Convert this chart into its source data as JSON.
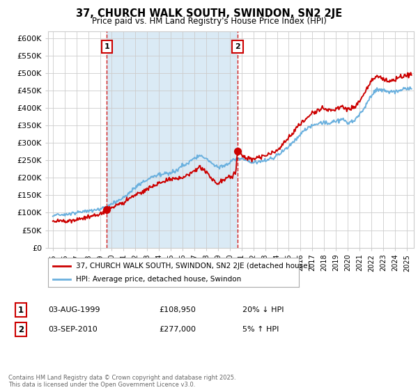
{
  "title": "37, CHURCH WALK SOUTH, SWINDON, SN2 2JE",
  "subtitle": "Price paid vs. HM Land Registry's House Price Index (HPI)",
  "legend_line1": "37, CHURCH WALK SOUTH, SWINDON, SN2 2JE (detached house)",
  "legend_line2": "HPI: Average price, detached house, Swindon",
  "sale1_label": "1",
  "sale1_date": "03-AUG-1999",
  "sale1_price": 108950,
  "sale1_note": "20% ↓ HPI",
  "sale2_label": "2",
  "sale2_date": "03-SEP-2010",
  "sale2_price": 277000,
  "sale2_note": "5% ↑ HPI",
  "hpi_color": "#6ab0de",
  "sale_color": "#cc0000",
  "vline_color": "#cc0000",
  "shade_color": "#daeaf5",
  "background_color": "#ffffff",
  "grid_color": "#cccccc",
  "ylim": [
    0,
    620000
  ],
  "yticks": [
    0,
    50000,
    100000,
    150000,
    200000,
    250000,
    300000,
    350000,
    400000,
    450000,
    500000,
    550000,
    600000
  ],
  "copyright_text": "Contains HM Land Registry data © Crown copyright and database right 2025.\nThis data is licensed under the Open Government Licence v3.0.",
  "sale1_year": 1999.583,
  "sale2_year": 2010.667
}
